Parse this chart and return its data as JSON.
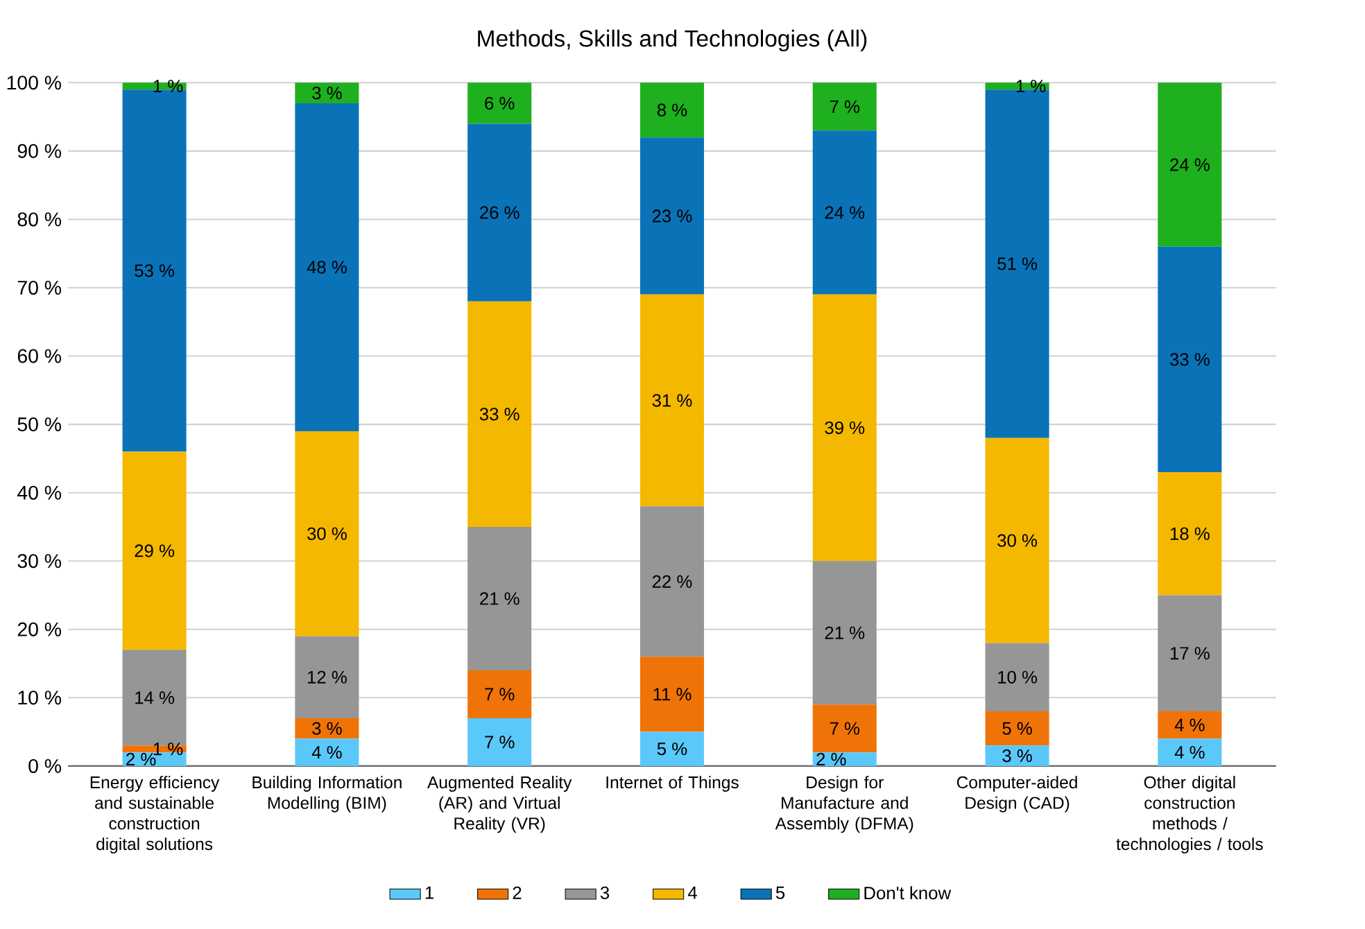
{
  "chart_data": {
    "type": "bar",
    "title": "Methods, Skills and Technologies (All)",
    "categories": [
      "Energy efficiency and sustainable construction digital solutions",
      "Building Information Modelling (BIM)",
      "Augmented Reality (AR) and Virtual Reality (VR)",
      "Internet of Things",
      "Design for Manufacture and Assembly (DFMA)",
      "Computer-aided Design (CAD)",
      "Other digital construction methods / technologies / tools"
    ],
    "stacked": true,
    "series": [
      {
        "name": "1",
        "color": "#5bc8fa",
        "values": [
          2,
          4,
          7,
          5,
          2,
          3,
          4
        ],
        "value_labels": [
          "2 %",
          "4 %",
          "7 %",
          "5 %",
          "2 %",
          "3 %",
          "4 %"
        ]
      },
      {
        "name": "2",
        "color": "#f07308",
        "values": [
          1,
          3,
          7,
          11,
          7,
          5,
          4
        ],
        "value_labels": [
          "1 %",
          "3 %",
          "7 %",
          "11 %",
          "7 %",
          "5 %",
          "4 %"
        ]
      },
      {
        "name": "3",
        "color": "#969696",
        "values": [
          14,
          12,
          21,
          22,
          21,
          10,
          17
        ],
        "value_labels": [
          "14 %",
          "12 %",
          "21 %",
          "22 %",
          "21 %",
          "10 %",
          "17 %"
        ]
      },
      {
        "name": "4",
        "color": "#f5b800",
        "values": [
          29,
          30,
          33,
          31,
          39,
          30,
          18
        ],
        "value_labels": [
          "29 %",
          "30 %",
          "33 %",
          "31 %",
          "39 %",
          "30 %",
          "18 %"
        ]
      },
      {
        "name": "5",
        "color": "#0a73b8",
        "values": [
          53,
          48,
          26,
          23,
          24,
          51,
          33
        ],
        "value_labels": [
          "53 %",
          "48 %",
          "26 %",
          "23 %",
          "24 %",
          "51 %",
          "33 %"
        ]
      },
      {
        "name": "Don't know",
        "color": "#1eb01e",
        "values": [
          1,
          3,
          6,
          8,
          7,
          1,
          24
        ],
        "value_labels": [
          "1 %",
          "3 %",
          "6 %",
          "8 %",
          "7 %",
          "1 %",
          "24 %"
        ]
      }
    ],
    "ylim": [
      0,
      100
    ],
    "yticks": [
      {
        "value": 0,
        "label": "0 %"
      },
      {
        "value": 10,
        "label": "10 %"
      },
      {
        "value": 20,
        "label": "20 %"
      },
      {
        "value": 30,
        "label": "30 %"
      },
      {
        "value": 40,
        "label": "40 %"
      },
      {
        "value": 50,
        "label": "50 %"
      },
      {
        "value": 60,
        "label": "60 %"
      },
      {
        "value": 70,
        "label": "70 %"
      },
      {
        "value": 80,
        "label": "80 %"
      },
      {
        "value": 90,
        "label": "90 %"
      },
      {
        "value": 100,
        "label": "100 %"
      }
    ],
    "grid": "y",
    "legend": "bottom"
  }
}
